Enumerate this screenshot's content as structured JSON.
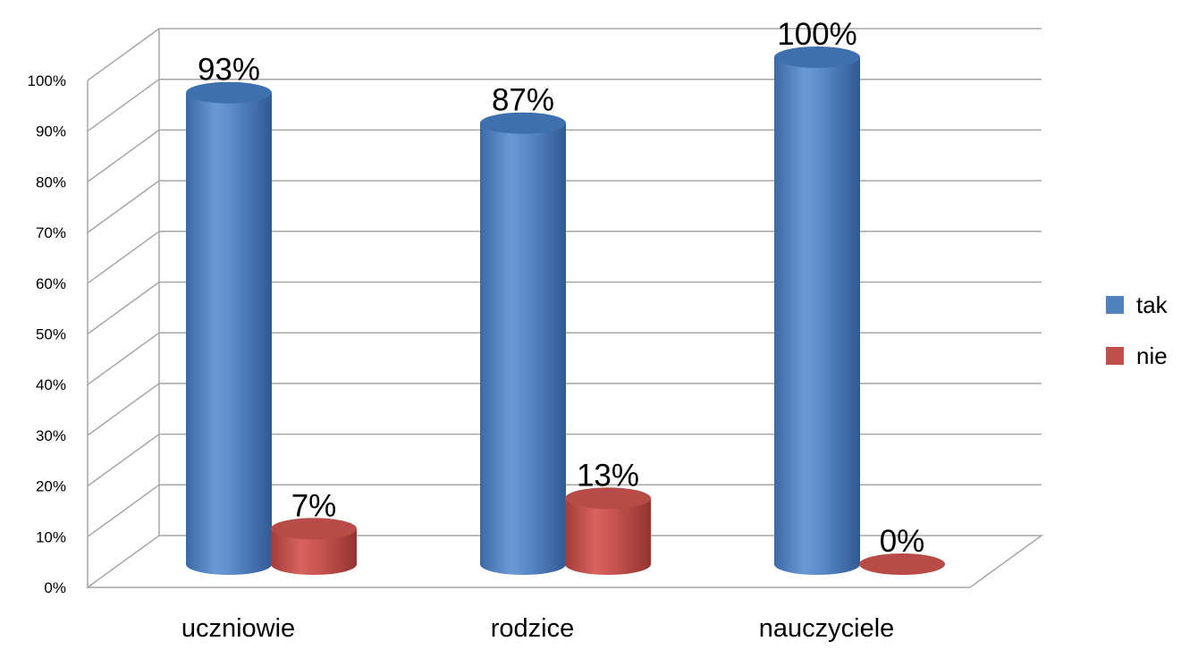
{
  "chart_data": {
    "type": "bar",
    "style": "3d-cylinder",
    "categories": [
      "uczniowie",
      "rodzice",
      "nauczyciele"
    ],
    "series": [
      {
        "name": "tak",
        "values": [
          93,
          87,
          100
        ],
        "labels": [
          "93%",
          "87%",
          "100%"
        ],
        "color": "#4f81bd"
      },
      {
        "name": "nie",
        "values": [
          7,
          13,
          0
        ],
        "labels": [
          "7%",
          "13%",
          "0%"
        ],
        "color": "#c0504d"
      }
    ],
    "yticks": [
      "0%",
      "10%",
      "20%",
      "30%",
      "40%",
      "50%",
      "60%",
      "70%",
      "80%",
      "90%",
      "100%"
    ],
    "ylim": [
      0,
      100
    ],
    "grid": true,
    "legend_position": "right"
  }
}
